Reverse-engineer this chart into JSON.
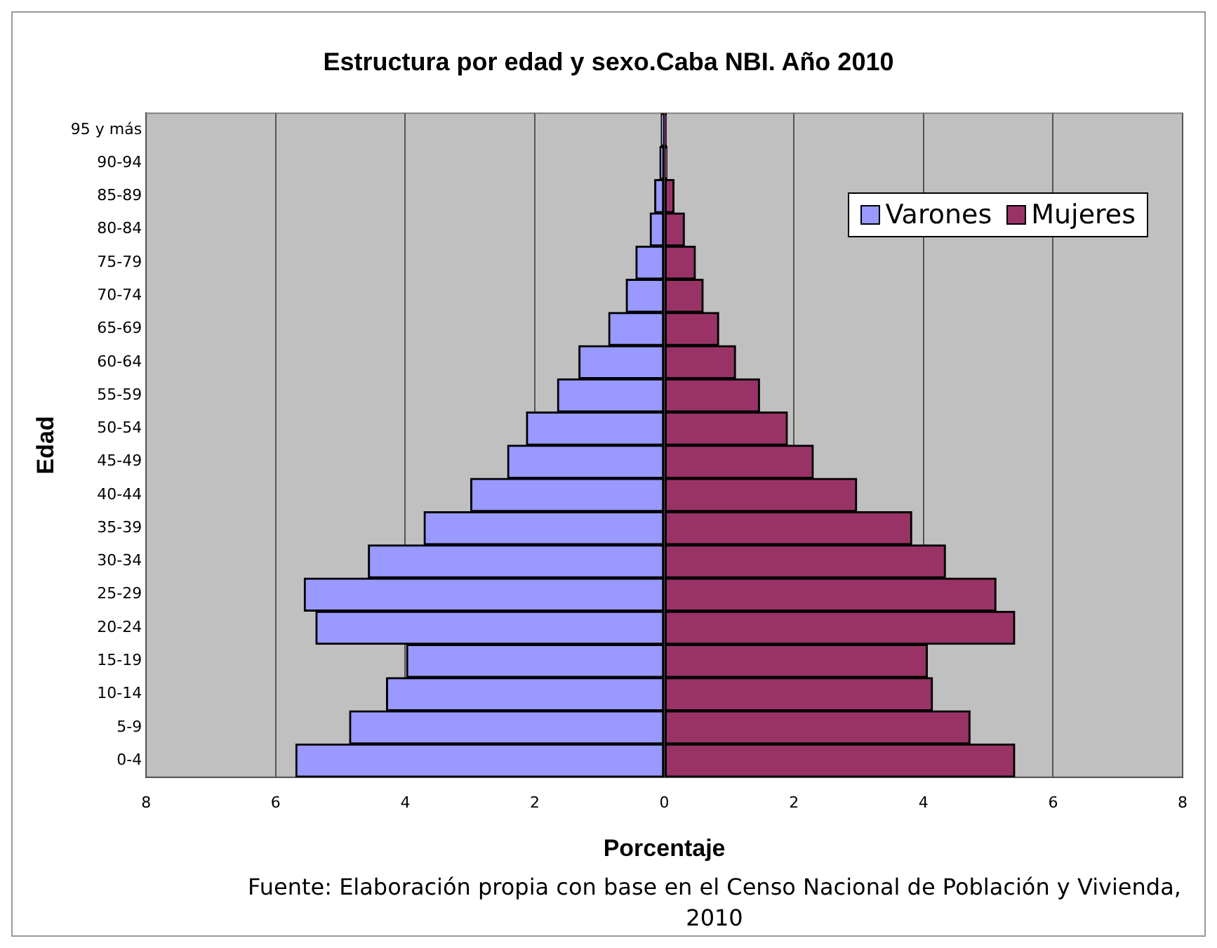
{
  "chart_data": {
    "type": "bar",
    "orientation": "horizontal",
    "stacked": true,
    "title": "Estructura por edad y sexo.Caba NBI. Año 2010",
    "xlabel": "Porcentaje",
    "ylabel": "Edad",
    "categories": [
      "95 y más",
      "90-94",
      "85-89",
      "80-84",
      "75-79",
      "70-74",
      "65-69",
      "60-64",
      "55-59",
      "50-54",
      "45-49",
      "40-44",
      "35-39",
      "30-34",
      "25-29",
      "20-24",
      "15-19",
      "10-14",
      "5-9",
      "0-4"
    ],
    "series": [
      {
        "name": "Varones",
        "color": "#9999ff",
        "values": [
          -0.05,
          -0.07,
          -0.15,
          -0.22,
          -0.44,
          -0.59,
          -0.86,
          -1.32,
          -1.65,
          -2.13,
          -2.42,
          -2.99,
          -3.71,
          -4.57,
          -5.56,
          -5.38,
          -3.98,
          -4.29,
          -4.86,
          -5.69
        ]
      },
      {
        "name": "Mujeres",
        "color": "#993366",
        "values": [
          0.03,
          0.04,
          0.15,
          0.31,
          0.48,
          0.6,
          0.84,
          1.1,
          1.47,
          1.9,
          2.3,
          2.97,
          3.82,
          4.34,
          5.12,
          5.41,
          4.06,
          4.14,
          4.72,
          5.41
        ]
      }
    ],
    "xlim": [
      -8,
      8
    ],
    "xticks": [
      {
        "value": -8,
        "label": "8"
      },
      {
        "value": -6,
        "label": "6"
      },
      {
        "value": -4,
        "label": "4"
      },
      {
        "value": -2,
        "label": "2"
      },
      0,
      2,
      4,
      6,
      8
    ],
    "grid": "x",
    "legend": "top right",
    "annotations": [
      "Fuente: Elaboración propia con base en el Censo Nacional de Población y Vivienda, 2010"
    ]
  }
}
